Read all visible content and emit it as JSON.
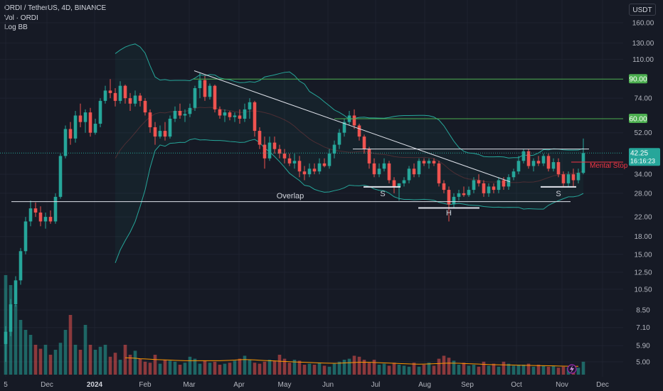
{
  "header": {
    "symbol_line": "ORDI / TetherUS, 4D, BINANCE",
    "volume_line": "Vol · ORDI",
    "indicator_line": "Log BB"
  },
  "currency": "USDT",
  "colors": {
    "background": "#161a25",
    "up": "#26a69a",
    "down": "#ef5350",
    "bb": "#26a69a",
    "level": "#4caf50",
    "stop": "#f23645",
    "vol_ma": "#ff9800",
    "text": "#b2b5be"
  },
  "chart_data": {
    "type": "candlestick",
    "price_scale": "log",
    "ylim": [
      4.5,
      175
    ],
    "y_ticks": [
      "160.00",
      "130.00",
      "110.00",
      "90.00",
      "74.00",
      "52.00",
      "34.00",
      "28.00",
      "22.00",
      "18.00",
      "15.00",
      "12.50",
      "10.50",
      "8.50",
      "7.10",
      "5.90",
      "5.00"
    ],
    "x_ticks": [
      "5",
      "Dec",
      "2024",
      "Feb",
      "Mar",
      "Apr",
      "May",
      "Jun",
      "Jul",
      "Aug",
      "Sep",
      "Oct",
      "Nov",
      "Dec"
    ],
    "last_price": "42.25",
    "countdown": "16:16:23",
    "levels": [
      {
        "value": 90,
        "label": "90.00"
      },
      {
        "value": 60,
        "label": "60.00"
      }
    ],
    "mental_stop": {
      "value": 38.5,
      "label": "Mental Stop"
    },
    "annotations": [
      "Overlap",
      "S",
      "H",
      "S"
    ],
    "candles": [
      [
        6.0,
        7.2,
        5.0,
        6.8
      ],
      [
        6.8,
        9.5,
        6.5,
        9.0
      ],
      [
        9.0,
        12.0,
        8.8,
        11.5
      ],
      [
        11.5,
        16.0,
        11.0,
        15.5
      ],
      [
        15.5,
        22.0,
        15.0,
        21.0
      ],
      [
        21.0,
        26.0,
        20.0,
        24.0
      ],
      [
        24.0,
        25.5,
        22.0,
        23.0
      ],
      [
        23.0,
        24.5,
        20.0,
        21.0
      ],
      [
        21.0,
        23.0,
        19.5,
        22.0
      ],
      [
        22.0,
        23.5,
        20.5,
        21.0
      ],
      [
        21.0,
        28.0,
        20.5,
        27.0
      ],
      [
        27.0,
        42.0,
        26.5,
        41.0
      ],
      [
        41.0,
        56.0,
        40.0,
        54.0
      ],
      [
        54.0,
        58.0,
        46.0,
        49.0
      ],
      [
        49.0,
        65.0,
        47.0,
        62.0
      ],
      [
        62.0,
        70.0,
        55.0,
        58.0
      ],
      [
        58.0,
        66.0,
        52.0,
        64.0
      ],
      [
        64.0,
        67.0,
        50.0,
        52.0
      ],
      [
        52.0,
        60.0,
        51.0,
        57.0
      ],
      [
        57.0,
        74.0,
        55.0,
        72.0
      ],
      [
        72.0,
        84.0,
        70.0,
        80.0
      ],
      [
        80.0,
        90.0,
        74.0,
        78.0
      ],
      [
        78.0,
        82.0,
        68.0,
        72.0
      ],
      [
        72.0,
        88.0,
        70.0,
        84.0
      ],
      [
        84.0,
        85.0,
        70.0,
        74.0
      ],
      [
        74.0,
        78.0,
        65.0,
        70.0
      ],
      [
        70.0,
        80.0,
        68.0,
        76.0
      ],
      [
        76.0,
        78.0,
        68.0,
        72.0
      ],
      [
        72.0,
        74.0,
        62.0,
        64.0
      ],
      [
        64.0,
        66.0,
        52.0,
        55.0
      ],
      [
        55.0,
        58.0,
        46.0,
        50.0
      ],
      [
        50.0,
        56.0,
        49.0,
        53.0
      ],
      [
        53.0,
        58.0,
        48.0,
        50.0
      ],
      [
        50.0,
        62.0,
        49.0,
        60.0
      ],
      [
        60.0,
        68.0,
        58.0,
        65.0
      ],
      [
        65.0,
        70.0,
        60.0,
        62.0
      ],
      [
        62.0,
        66.0,
        58.0,
        63.0
      ],
      [
        63.0,
        70.0,
        61.0,
        67.0
      ],
      [
        67.0,
        84.0,
        65.0,
        82.0
      ],
      [
        82.0,
        96.0,
        74.0,
        89.0
      ],
      [
        89.0,
        93.0,
        72.0,
        75.0
      ],
      [
        75.0,
        86.0,
        73.0,
        84.0
      ],
      [
        84.0,
        85.0,
        64.0,
        66.0
      ],
      [
        66.0,
        68.0,
        60.0,
        62.0
      ],
      [
        62.0,
        66.0,
        58.0,
        64.0
      ],
      [
        64.0,
        65.0,
        59.0,
        61.0
      ],
      [
        61.0,
        64.0,
        58.0,
        62.0
      ],
      [
        62.0,
        66.0,
        57.0,
        60.0
      ],
      [
        60.0,
        70.0,
        58.0,
        66.0
      ],
      [
        66.0,
        74.0,
        60.0,
        71.0
      ],
      [
        71.0,
        72.0,
        50.0,
        53.0
      ],
      [
        53.0,
        55.0,
        44.0,
        46.0
      ],
      [
        46.0,
        50.0,
        36.0,
        40.0
      ],
      [
        40.0,
        50.0,
        39.0,
        47.0
      ],
      [
        47.0,
        50.0,
        42.0,
        44.0
      ],
      [
        44.0,
        46.0,
        40.0,
        42.0
      ],
      [
        42.0,
        44.0,
        38.0,
        40.0
      ],
      [
        40.0,
        42.0,
        37.0,
        38.0
      ],
      [
        38.0,
        42.0,
        36.0,
        39.0
      ],
      [
        39.0,
        41.0,
        33.0,
        35.0
      ],
      [
        35.0,
        37.0,
        32.0,
        34.0
      ],
      [
        34.0,
        38.0,
        33.0,
        36.0
      ],
      [
        36.0,
        38.0,
        34.0,
        35.0
      ],
      [
        35.0,
        40.0,
        34.0,
        38.0
      ],
      [
        38.0,
        40.0,
        36.5,
        37.0
      ],
      [
        37.0,
        44.0,
        36.0,
        42.0
      ],
      [
        42.0,
        48.0,
        40.0,
        46.0
      ],
      [
        46.0,
        54.0,
        44.0,
        52.0
      ],
      [
        52.0,
        60.0,
        50.0,
        58.0
      ],
      [
        58.0,
        65.0,
        56.0,
        62.0
      ],
      [
        62.0,
        66.0,
        54.0,
        56.0
      ],
      [
        56.0,
        57.0,
        48.0,
        50.0
      ],
      [
        50.0,
        51.0,
        42.0,
        44.0
      ],
      [
        44.0,
        45.0,
        36.0,
        38.0
      ],
      [
        38.0,
        40.0,
        33.0,
        34.0
      ],
      [
        34.0,
        38.0,
        33.0,
        36.0
      ],
      [
        36.0,
        40.0,
        35.0,
        38.0
      ],
      [
        38.0,
        39.0,
        31.0,
        32.0
      ],
      [
        32.0,
        33.0,
        28.0,
        30.0
      ],
      [
        30.0,
        31.0,
        26.0,
        31.0
      ],
      [
        31.0,
        33.0,
        30.0,
        32.0
      ],
      [
        32.0,
        37.0,
        31.0,
        36.0
      ],
      [
        36.0,
        38.0,
        33.0,
        34.0
      ],
      [
        34.0,
        40.0,
        33.0,
        39.0
      ],
      [
        39.0,
        40.0,
        37.0,
        38.0
      ],
      [
        38.0,
        40.0,
        36.0,
        39.0
      ],
      [
        39.0,
        40.0,
        37.0,
        38.0
      ],
      [
        38.0,
        39.0,
        30.0,
        31.0
      ],
      [
        31.0,
        32.0,
        28.0,
        29.0
      ],
      [
        29.0,
        30.0,
        21.0,
        25.0
      ],
      [
        25.0,
        28.0,
        24.0,
        27.0
      ],
      [
        27.0,
        29.0,
        26.0,
        28.0
      ],
      [
        28.0,
        30.0,
        27.0,
        27.5
      ],
      [
        27.5,
        30.0,
        27.0,
        29.0
      ],
      [
        29.0,
        33.0,
        28.0,
        32.0
      ],
      [
        32.0,
        34.0,
        30.0,
        31.0
      ],
      [
        31.0,
        32.0,
        27.0,
        28.0
      ],
      [
        28.0,
        31.0,
        27.0,
        30.0
      ],
      [
        30.0,
        31.0,
        28.0,
        29.0
      ],
      [
        29.0,
        33.0,
        28.0,
        32.0
      ],
      [
        32.0,
        33.0,
        29.0,
        30.0
      ],
      [
        30.0,
        34.0,
        29.0,
        33.0
      ],
      [
        33.0,
        36.0,
        32.0,
        35.0
      ],
      [
        35.0,
        41.0,
        34.0,
        39.0
      ],
      [
        39.0,
        44.0,
        38.0,
        43.0
      ],
      [
        43.0,
        44.0,
        36.0,
        37.0
      ],
      [
        37.0,
        40.0,
        35.0,
        39.0
      ],
      [
        39.0,
        41.0,
        37.0,
        38.0
      ],
      [
        38.0,
        42.0,
        37.0,
        41.0
      ],
      [
        41.0,
        42.0,
        35.0,
        36.0
      ],
      [
        36.0,
        40.0,
        35.0,
        38.5
      ],
      [
        38.5,
        40.0,
        33.0,
        34.0
      ],
      [
        34.0,
        35.0,
        30.0,
        31.0
      ],
      [
        31.0,
        35.0,
        30.0,
        34.0
      ],
      [
        34.0,
        36.0,
        30.0,
        32.0
      ],
      [
        32.0,
        36.0,
        31.0,
        34.5
      ],
      [
        34.5,
        49.0,
        34.0,
        42.25
      ]
    ],
    "volumes": [
      10,
      9,
      7,
      5.5,
      4.5,
      4,
      3,
      2.6,
      3,
      2,
      2.5,
      3.2,
      4.5,
      6,
      3,
      2.5,
      5,
      3,
      2.5,
      2.8,
      3,
      1.8,
      2.2,
      1.5,
      3,
      2,
      2.4,
      1.6,
      1.3,
      1.2,
      2,
      1.1,
      1.5,
      1.4,
      1.3,
      1,
      1.2,
      1.8,
      1.6,
      1.1,
      1.4,
      1.2,
      1.3,
      1,
      1.1,
      1.2,
      1.4,
      1.6,
      1.9,
      1.5,
      1.2,
      1.1,
      1.3,
      1.5,
      1.4,
      2,
      1.6,
      1.2,
      1.5,
      1.4,
      1,
      1.1,
      1,
      1.2,
      0.9,
      0.8,
      1.1,
      1.3,
      1.5,
      1.6,
      1.9,
      1.8,
      1.5,
      1.2,
      1.5,
      1,
      1.1,
      0.9,
      1.2,
      1,
      0.9,
      0.8,
      1.2,
      0.8,
      1,
      1.2,
      0.9,
      1.6,
      1.9,
      1.7,
      1.4,
      1,
      1.2,
      0.9,
      1,
      0.8,
      1.3,
      0.9,
      1.1,
      0.8,
      1.3,
      1.1,
      0.9,
      1,
      1,
      1.1,
      0.8,
      1,
      0.9,
      0.8,
      0.9,
      0.7,
      0.8,
      0.7,
      0.6,
      0.7,
      1.3
    ],
    "vol_ma": [
      5,
      4.9,
      4.7,
      4.5,
      4.2,
      4,
      3.8,
      3.6,
      3.4,
      3.2,
      3,
      2.8,
      2.7,
      2.6,
      2.5,
      2.4,
      2.3,
      2.2,
      2.1,
      2,
      1.9,
      1.85,
      1.8,
      1.75,
      1.7,
      1.68,
      1.65,
      1.6,
      1.58,
      1.55,
      1.52,
      1.5,
      1.48,
      1.46,
      1.44,
      1.42,
      1.4,
      1.4,
      1.4,
      1.4,
      1.4,
      1.4,
      1.4,
      1.4,
      1.42,
      1.44,
      1.46,
      1.5,
      1.52,
      1.5,
      1.48,
      1.45,
      1.42,
      1.4,
      1.38,
      1.35,
      1.32,
      1.3,
      1.28,
      1.26,
      1.24,
      1.22,
      1.2,
      1.18,
      1.16,
      1.15,
      1.14,
      1.15,
      1.18,
      1.2,
      1.22,
      1.24,
      1.25,
      1.24,
      1.22,
      1.2,
      1.18,
      1.16,
      1.14,
      1.12,
      1.1,
      1.08,
      1.06,
      1.05,
      1.06,
      1.08,
      1.1,
      1.12,
      1.14,
      1.16,
      1.15,
      1.14,
      1.12,
      1.1,
      1.08,
      1.06,
      1.04,
      1.02,
      1,
      0.99,
      0.98,
      0.97,
      0.96,
      0.95,
      0.94,
      0.93,
      0.92,
      0.91,
      0.9,
      0.89,
      0.88,
      0.87,
      0.86,
      0.85,
      0.84,
      0.84
    ]
  }
}
